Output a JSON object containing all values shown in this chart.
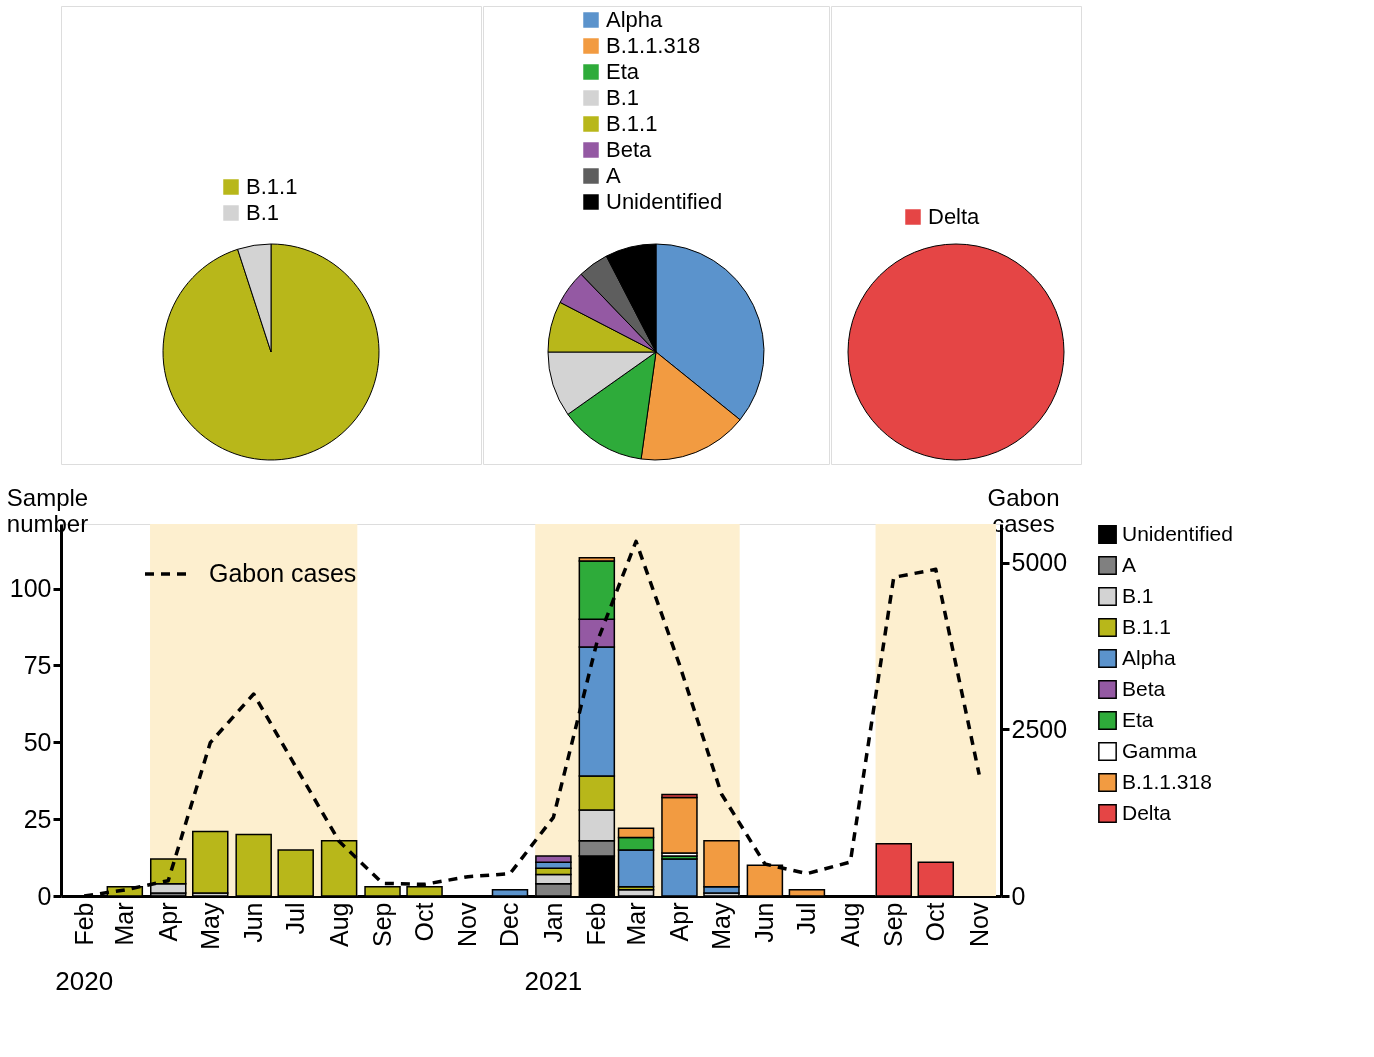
{
  "chart_data": [
    {
      "type": "pie",
      "categories": [
        "B.1.1",
        "B.1"
      ],
      "values": [
        95,
        5
      ],
      "colors": [
        "#b8b71a",
        "#d3d3d3"
      ],
      "legend": "top"
    },
    {
      "type": "pie",
      "categories": [
        "Alpha",
        "B.1.1.318",
        "Eta",
        "B.1",
        "B.1.1",
        "Beta",
        "A",
        "Unidentified"
      ],
      "values": [
        35.8,
        16.4,
        13,
        9.8,
        7.6,
        5.2,
        4.6,
        7.6
      ],
      "colors": [
        "#5b93cc",
        "#f29b41",
        "#2eab3a",
        "#d3d3d3",
        "#b8b71a",
        "#9459a3",
        "#5e5e5e",
        "#000000"
      ],
      "legend": "top"
    },
    {
      "type": "pie",
      "categories": [
        "Delta"
      ],
      "values": [
        100
      ],
      "colors": [
        "#e54545"
      ],
      "legend": "top"
    },
    {
      "type": "bar",
      "stacked": true,
      "legend": "right",
      "grid": false,
      "ylabel": "Sample number",
      "y2label": "Gabon cases",
      "x": [
        "2020-02",
        "2020-03",
        "2020-04",
        "2020-05",
        "2020-06",
        "2020-07",
        "2020-08",
        "2020-09",
        "2020-10",
        "2020-11",
        "2020-12",
        "2021-01",
        "2021-02",
        "2021-03",
        "2021-04",
        "2021-05",
        "2021-06",
        "2021-07",
        "2021-08",
        "2021-09",
        "2021-10",
        "2021-11"
      ],
      "xlim": [
        "2020-01-19",
        "2021-11-13"
      ],
      "xticks": [
        {
          "value": "2020-02",
          "label": "Feb"
        },
        {
          "value": "2020-03",
          "label": "Mar"
        },
        {
          "value": "2020-04",
          "label": "Apr"
        },
        {
          "value": "2020-05",
          "label": "May"
        },
        {
          "value": "2020-06",
          "label": "Jun"
        },
        {
          "value": "2020-07",
          "label": "Jul"
        },
        {
          "value": "2020-08",
          "label": "Aug"
        },
        {
          "value": "2020-09",
          "label": "Sep"
        },
        {
          "value": "2020-10",
          "label": "Oct"
        },
        {
          "value": "2020-11",
          "label": "Nov"
        },
        {
          "value": "2020-12",
          "label": "Dec"
        },
        {
          "value": "2021-01",
          "label": "Jan"
        },
        {
          "value": "2021-02",
          "label": "Feb"
        },
        {
          "value": "2021-03",
          "label": "Mar"
        },
        {
          "value": "2021-04",
          "label": "Apr"
        },
        {
          "value": "2021-05",
          "label": "May"
        },
        {
          "value": "2021-06",
          "label": "Jun"
        },
        {
          "value": "2021-07",
          "label": "Jul"
        },
        {
          "value": "2021-08",
          "label": "Aug"
        },
        {
          "value": "2021-09",
          "label": "Sep"
        },
        {
          "value": "2021-10",
          "label": "Oct"
        },
        {
          "value": "2021-11",
          "label": "Nov"
        }
      ],
      "ylim": [
        0,
        121
      ],
      "yticks": [
        0,
        25,
        50,
        75,
        100
      ],
      "y2lim": [
        0,
        5580
      ],
      "y2ticks": [
        0,
        2500,
        5000
      ],
      "bands": [
        {
          "axis": "x",
          "from": "2020-03-19",
          "to": "2020-08-14",
          "color": "#fdefcf"
        },
        {
          "axis": "x",
          "from": "2020-12-19",
          "to": "2021-05-14",
          "color": "#fdefcf"
        },
        {
          "axis": "x",
          "from": "2021-08-19",
          "to": "2021-11-13",
          "color": "#fdefcf"
        }
      ],
      "annotations": [
        "2020",
        "2021"
      ],
      "series": [
        {
          "name": "Unidentified",
          "color": "#000000",
          "values": [
            null,
            null,
            null,
            null,
            null,
            null,
            null,
            null,
            null,
            null,
            null,
            null,
            13,
            null,
            null,
            null,
            null,
            null,
            null,
            null,
            null,
            null
          ]
        },
        {
          "name": "A",
          "color": "#808080",
          "values": [
            null,
            null,
            1,
            null,
            null,
            null,
            null,
            null,
            null,
            null,
            null,
            4,
            5,
            null,
            null,
            null,
            null,
            null,
            null,
            null,
            null,
            null
          ]
        },
        {
          "name": "B.1",
          "color": "#d3d3d3",
          "values": [
            null,
            null,
            3,
            1,
            null,
            null,
            null,
            null,
            null,
            null,
            null,
            3,
            10,
            2,
            null,
            1,
            null,
            null,
            null,
            null,
            null,
            null
          ]
        },
        {
          "name": "B.1.1",
          "color": "#b8b71a",
          "values": [
            null,
            3,
            8,
            20,
            20,
            15,
            18,
            3,
            3,
            null,
            null,
            2,
            11,
            1,
            null,
            null,
            null,
            null,
            null,
            null,
            null,
            null
          ]
        },
        {
          "name": "Alpha",
          "color": "#5b93cc",
          "values": [
            null,
            null,
            null,
            null,
            null,
            null,
            null,
            null,
            null,
            null,
            2,
            2,
            42,
            12,
            12,
            2,
            null,
            null,
            null,
            null,
            null,
            null
          ]
        },
        {
          "name": "Beta",
          "color": "#9459a3",
          "values": [
            null,
            null,
            null,
            null,
            null,
            null,
            null,
            null,
            null,
            null,
            null,
            2,
            9,
            null,
            null,
            null,
            null,
            null,
            null,
            null,
            null,
            null
          ]
        },
        {
          "name": "Eta",
          "color": "#2eab3a",
          "values": [
            null,
            null,
            null,
            null,
            null,
            null,
            null,
            null,
            null,
            null,
            null,
            null,
            19,
            4,
            1,
            null,
            null,
            null,
            null,
            null,
            null,
            null
          ]
        },
        {
          "name": "Gamma",
          "color": "#ffffff",
          "values": [
            null,
            null,
            null,
            null,
            null,
            null,
            null,
            null,
            null,
            null,
            null,
            null,
            null,
            null,
            1,
            null,
            null,
            null,
            null,
            null,
            null,
            null
          ]
        },
        {
          "name": "B.1.1.318",
          "color": "#f29b41",
          "values": [
            null,
            null,
            null,
            null,
            null,
            null,
            null,
            null,
            null,
            null,
            null,
            null,
            1,
            3,
            18,
            15,
            10,
            2,
            null,
            null,
            null,
            null
          ]
        },
        {
          "name": "Delta",
          "color": "#e54545",
          "values": [
            null,
            null,
            null,
            null,
            null,
            null,
            null,
            null,
            null,
            null,
            null,
            null,
            null,
            null,
            1,
            null,
            null,
            null,
            null,
            17,
            11,
            null
          ]
        },
        {
          "name": "Gabon cases",
          "type": "line",
          "axis": "y2",
          "line_style": "dashed",
          "color": "#000000",
          "values": [
            0,
            90,
            230,
            2300,
            3030,
            1940,
            820,
            190,
            175,
            290,
            335,
            1180,
            3800,
            5320,
            3470,
            1530,
            480,
            335,
            510,
            4780,
            4900,
            1820
          ]
        }
      ]
    }
  ]
}
